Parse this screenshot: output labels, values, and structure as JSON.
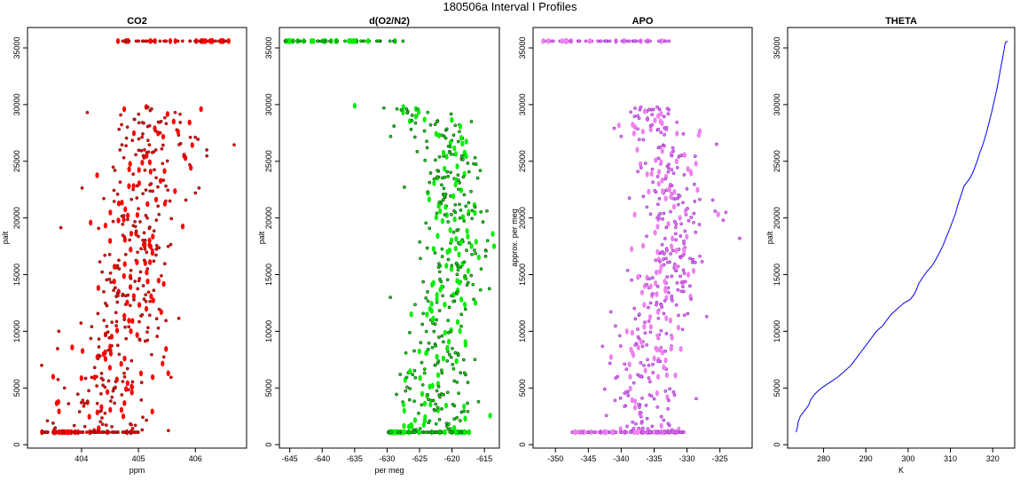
{
  "figure": {
    "title": "180506a   Interval I Profiles"
  },
  "chart_data": [
    {
      "id": "co2",
      "type": "scatter",
      "title": "CO2",
      "xlabel": "ppm",
      "ylabel": "palt",
      "xlim": [
        403.05,
        406.9
      ],
      "ylim": [
        -300,
        36800
      ],
      "xticks": [
        404,
        405,
        406
      ],
      "yticks": [
        0,
        5000,
        10000,
        15000,
        20000,
        25000,
        30000,
        35000
      ],
      "colors": {
        "edge": "#7a1a1a",
        "fill": "#ff0000"
      },
      "profile": [
        [
          1100,
          404.2,
          0.55
        ],
        [
          2000,
          404.3,
          0.45
        ],
        [
          3000,
          404.35,
          0.4
        ],
        [
          4000,
          404.45,
          0.4
        ],
        [
          5000,
          404.5,
          0.4
        ],
        [
          6000,
          404.5,
          0.4
        ],
        [
          7000,
          404.55,
          0.4
        ],
        [
          8000,
          404.55,
          0.4
        ],
        [
          9000,
          404.6,
          0.4
        ],
        [
          10000,
          404.7,
          0.4
        ],
        [
          11000,
          404.85,
          0.4
        ],
        [
          12000,
          404.9,
          0.4
        ],
        [
          13000,
          404.85,
          0.35
        ],
        [
          14000,
          404.85,
          0.35
        ],
        [
          15000,
          404.9,
          0.35
        ],
        [
          16000,
          404.95,
          0.35
        ],
        [
          17000,
          405.0,
          0.35
        ],
        [
          18000,
          404.95,
          0.35
        ],
        [
          19000,
          404.95,
          0.35
        ],
        [
          20000,
          405.0,
          0.35
        ],
        [
          21000,
          405.0,
          0.35
        ],
        [
          22000,
          405.05,
          0.35
        ],
        [
          23000,
          405.05,
          0.35
        ],
        [
          24000,
          405.15,
          0.4
        ],
        [
          25000,
          405.25,
          0.4
        ],
        [
          26000,
          405.3,
          0.4
        ],
        [
          27000,
          405.3,
          0.4
        ],
        [
          28000,
          405.25,
          0.35
        ],
        [
          29000,
          405.2,
          0.35
        ],
        [
          29800,
          405.15,
          0.3
        ]
      ],
      "floor": {
        "y": 1100,
        "xmin": 403.3,
        "xmax": 405.0
      },
      "ceiling": {
        "y": 35600,
        "xmin": 404.6,
        "xmax": 406.6
      },
      "outliers": [
        [
          403.3,
          7000
        ],
        [
          403.5,
          6000
        ],
        [
          403.6,
          10000
        ],
        [
          403.7,
          5000
        ],
        [
          403.5,
          1900
        ],
        [
          404.1,
          29300
        ],
        [
          406.1,
          29600
        ],
        [
          406.0,
          22200
        ],
        [
          406.2,
          26000
        ],
        [
          403.4,
          2100
        ]
      ],
      "n": 420,
      "seed": 11
    },
    {
      "id": "o2n2",
      "type": "scatter",
      "title": "d(O2/N2)",
      "xlabel": "per meg",
      "ylabel": "palt",
      "xlim": [
        -646.6,
        -612.7
      ],
      "ylim": [
        -300,
        36800
      ],
      "xticks": [
        -645,
        -640,
        -635,
        -630,
        -625,
        -620,
        -615
      ],
      "yticks": [
        0,
        5000,
        10000,
        15000,
        20000,
        25000,
        30000,
        35000
      ],
      "colors": {
        "edge": "#1a4d1a",
        "fill": "#00ee00"
      },
      "profile": [
        [
          1100,
          -621.0,
          3.5
        ],
        [
          2000,
          -622.0,
          3.0
        ],
        [
          3000,
          -622.5,
          3.0
        ],
        [
          4000,
          -623.0,
          3.0
        ],
        [
          5000,
          -623.5,
          3.0
        ],
        [
          6000,
          -623.0,
          3.0
        ],
        [
          7000,
          -622.5,
          2.8
        ],
        [
          8000,
          -622.0,
          2.8
        ],
        [
          9000,
          -622.0,
          2.8
        ],
        [
          10000,
          -622.0,
          2.8
        ],
        [
          11000,
          -622.5,
          2.5
        ],
        [
          12000,
          -622.0,
          2.5
        ],
        [
          13000,
          -621.0,
          2.5
        ],
        [
          14000,
          -620.0,
          2.5
        ],
        [
          15000,
          -619.5,
          2.5
        ],
        [
          16000,
          -619.5,
          2.5
        ],
        [
          17000,
          -619.0,
          2.5
        ],
        [
          18000,
          -619.0,
          2.5
        ],
        [
          19000,
          -619.5,
          2.5
        ],
        [
          20000,
          -619.5,
          2.5
        ],
        [
          21000,
          -620.0,
          2.5
        ],
        [
          22000,
          -620.0,
          2.5
        ],
        [
          23000,
          -620.0,
          2.5
        ],
        [
          24000,
          -620.0,
          2.5
        ],
        [
          25000,
          -620.5,
          2.5
        ],
        [
          26000,
          -621.0,
          2.5
        ],
        [
          27000,
          -622.0,
          2.5
        ],
        [
          28000,
          -623.5,
          2.5
        ],
        [
          29000,
          -625.5,
          2.2
        ],
        [
          29800,
          -628.0,
          2.0
        ]
      ],
      "floor": {
        "y": 1100,
        "xmin": -630.0,
        "xmax": -617.0
      },
      "ceiling": {
        "y": 35600,
        "xmin": -646.0,
        "xmax": -626.0
      },
      "outliers": [
        [
          -635.0,
          29900
        ],
        [
          -630.5,
          29700
        ],
        [
          -614.5,
          18000
        ],
        [
          -613.5,
          17500
        ],
        [
          -615.5,
          15500
        ],
        [
          -629.5,
          13000
        ],
        [
          -617.0,
          28500
        ]
      ],
      "n": 420,
      "seed": 23
    },
    {
      "id": "apo",
      "type": "scatter",
      "title": "APO",
      "xlabel": "",
      "ylabel": "approx. per meg",
      "xlim": [
        -353.4,
        -320.1
      ],
      "ylim": [
        -300,
        36800
      ],
      "xticks": [
        -350,
        -345,
        -340,
        -335,
        -330,
        -325
      ],
      "yticks": [
        0,
        5000,
        10000,
        15000,
        20000,
        25000,
        30000,
        35000
      ],
      "colors": {
        "edge": "#9932cc",
        "fill": "#ee82ee"
      },
      "profile": [
        [
          1100,
          -336.5,
          3.0
        ],
        [
          2000,
          -336.5,
          3.0
        ],
        [
          3000,
          -337.0,
          3.0
        ],
        [
          4000,
          -337.0,
          3.0
        ],
        [
          5000,
          -337.0,
          3.0
        ],
        [
          6000,
          -337.0,
          3.0
        ],
        [
          7000,
          -336.5,
          2.8
        ],
        [
          8000,
          -336.0,
          2.8
        ],
        [
          9000,
          -336.0,
          2.8
        ],
        [
          10000,
          -335.5,
          2.8
        ],
        [
          11000,
          -334.5,
          2.5
        ],
        [
          12000,
          -334.0,
          2.5
        ],
        [
          13000,
          -333.5,
          2.5
        ],
        [
          14000,
          -333.0,
          2.5
        ],
        [
          15000,
          -332.5,
          2.5
        ],
        [
          16000,
          -332.0,
          2.5
        ],
        [
          17000,
          -331.5,
          2.5
        ],
        [
          18000,
          -331.5,
          2.5
        ],
        [
          19000,
          -331.5,
          2.5
        ],
        [
          20000,
          -331.5,
          2.5
        ],
        [
          21000,
          -332.0,
          2.5
        ],
        [
          22000,
          -332.0,
          2.5
        ],
        [
          23000,
          -332.0,
          2.5
        ],
        [
          24000,
          -332.5,
          2.5
        ],
        [
          25000,
          -333.0,
          2.5
        ],
        [
          26000,
          -333.5,
          2.5
        ],
        [
          27000,
          -334.0,
          2.5
        ],
        [
          28000,
          -335.0,
          2.5
        ],
        [
          29000,
          -336.0,
          2.2
        ],
        [
          29800,
          -336.5,
          2.0
        ]
      ],
      "floor": {
        "y": 1100,
        "xmin": -348.0,
        "xmax": -330.0
      },
      "ceiling": {
        "y": 35600,
        "xmin": -352.0,
        "xmax": -331.5
      },
      "outliers": [
        [
          -340.0,
          27200
        ],
        [
          -322.0,
          18200
        ],
        [
          -324.5,
          19800
        ],
        [
          -327.0,
          11300
        ],
        [
          -342.5,
          4900
        ],
        [
          -325.5,
          26500
        ]
      ],
      "n": 420,
      "seed": 37
    },
    {
      "id": "theta",
      "type": "line",
      "title": "THETA",
      "xlabel": "K",
      "ylabel": "palt",
      "xlim": [
        271.5,
        325.2
      ],
      "ylim": [
        -300,
        36800
      ],
      "xticks": [
        280,
        290,
        300,
        310,
        320
      ],
      "yticks": [
        0,
        5000,
        10000,
        15000,
        20000,
        25000,
        30000,
        35000
      ],
      "colors": {
        "line": "#0000ff"
      },
      "points": [
        [
          273.5,
          1100
        ],
        [
          273.8,
          1500
        ],
        [
          274.0,
          2000
        ],
        [
          274.5,
          2500
        ],
        [
          275.5,
          3000
        ],
        [
          276.5,
          3500
        ],
        [
          277.0,
          4000
        ],
        [
          278.0,
          4500
        ],
        [
          279.5,
          5000
        ],
        [
          281.5,
          5500
        ],
        [
          283.5,
          6000
        ],
        [
          285.0,
          6500
        ],
        [
          286.5,
          7000
        ],
        [
          287.5,
          7500
        ],
        [
          288.5,
          8000
        ],
        [
          289.5,
          8500
        ],
        [
          290.5,
          9000
        ],
        [
          291.5,
          9500
        ],
        [
          292.5,
          10000
        ],
        [
          294.0,
          10500
        ],
        [
          295.0,
          11000
        ],
        [
          296.0,
          11500
        ],
        [
          297.5,
          12000
        ],
        [
          299.0,
          12500
        ],
        [
          300.5,
          12800
        ],
        [
          301.5,
          13300
        ],
        [
          302.0,
          13700
        ],
        [
          302.5,
          14200
        ],
        [
          303.5,
          14800
        ],
        [
          304.5,
          15300
        ],
        [
          305.5,
          15700
        ],
        [
          306.5,
          16300
        ],
        [
          307.5,
          17000
        ],
        [
          308.3,
          17600
        ],
        [
          309.0,
          18300
        ],
        [
          309.8,
          19000
        ],
        [
          310.5,
          19700
        ],
        [
          311.2,
          20400
        ],
        [
          311.8,
          21200
        ],
        [
          312.5,
          22000
        ],
        [
          313.2,
          22800
        ],
        [
          314.0,
          23200
        ],
        [
          314.8,
          23600
        ],
        [
          315.5,
          24200
        ],
        [
          316.3,
          25000
        ],
        [
          317.0,
          25800
        ],
        [
          317.8,
          26600
        ],
        [
          318.5,
          27500
        ],
        [
          319.2,
          28500
        ],
        [
          319.8,
          29400
        ],
        [
          320.4,
          30400
        ],
        [
          321.0,
          31400
        ],
        [
          321.5,
          32400
        ],
        [
          322.0,
          33400
        ],
        [
          322.5,
          34400
        ],
        [
          322.8,
          35100
        ],
        [
          323.0,
          35500
        ],
        [
          323.6,
          35600
        ]
      ]
    }
  ]
}
